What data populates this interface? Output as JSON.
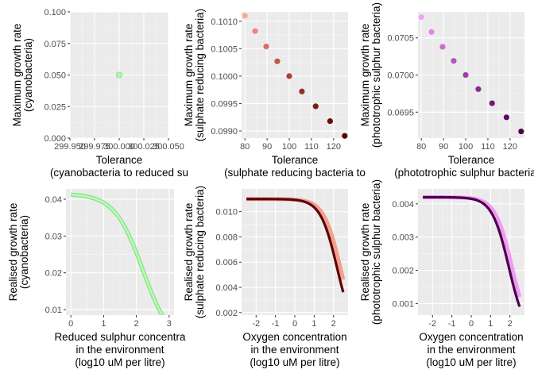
{
  "chart_data": [
    {
      "type": "scatter",
      "ylabel": [
        "Maximum growth rate",
        "(cyanobacteria)"
      ],
      "xlabel": [
        "Tolerance",
        "(cyanobacteria to reduced su"
      ],
      "xlim": [
        299.95,
        300.05
      ],
      "ylim": [
        0.0,
        0.1
      ],
      "xticks": [
        299.95,
        299.975,
        300.0,
        300.025,
        300.05
      ],
      "xtick_labels": [
        "299.950",
        "299.975",
        "300.000",
        "300.025",
        "300.050"
      ],
      "yticks": [
        0.0,
        0.025,
        0.05,
        0.075,
        0.1
      ],
      "ytick_labels": [
        "0.000",
        "0.025",
        "0.050",
        "0.075",
        "0.100"
      ],
      "grid": true,
      "points": [
        {
          "x": 300.0,
          "y": 0.05,
          "color": "#b4f5b4"
        }
      ]
    },
    {
      "type": "scatter",
      "ylabel": [
        "Maximum growth rate",
        "(sulphate reducing bacteria)"
      ],
      "xlabel": [
        "Tolerance",
        "(sulphate reducing bacteria to"
      ],
      "xlim": [
        78.5,
        126.5
      ],
      "ylim": [
        0.09887,
        0.10117
      ],
      "xticks": [
        80,
        90,
        100,
        110,
        120
      ],
      "xtick_labels": [
        "80",
        "90",
        "100",
        "110",
        "120"
      ],
      "yticks": [
        0.099,
        0.0995,
        0.1,
        0.1005,
        0.101
      ],
      "ytick_labels": [
        "0.0990",
        "0.0995",
        "0.1000",
        "0.1005",
        "0.1010"
      ],
      "grid": true,
      "points": [
        {
          "x": 80.0,
          "y": 0.1011,
          "color": "#f9aa98"
        },
        {
          "x": 84.6,
          "y": 0.10082,
          "color": "#ea8876"
        },
        {
          "x": 89.6,
          "y": 0.10054,
          "color": "#d86f5e"
        },
        {
          "x": 94.6,
          "y": 0.10027,
          "color": "#c45748"
        },
        {
          "x": 100.0,
          "y": 0.1,
          "color": "#ad4033"
        },
        {
          "x": 105.7,
          "y": 0.09972,
          "color": "#962d22"
        },
        {
          "x": 111.9,
          "y": 0.09945,
          "color": "#7e1a13"
        },
        {
          "x": 118.4,
          "y": 0.09918,
          "color": "#690d08"
        },
        {
          "x": 125.0,
          "y": 0.09891,
          "color": "#5a0202"
        }
      ]
    },
    {
      "type": "scatter",
      "ylabel": [
        "Maximum growth rate",
        "(phototrophic sulphur bacteria)"
      ],
      "xlabel": [
        "Tolerance",
        "(phototrophic sulphur bacteria to"
      ],
      "xlim": [
        78.5,
        126.5
      ],
      "ylim": [
        0.06915,
        0.07085
      ],
      "xticks": [
        80,
        90,
        100,
        110,
        120
      ],
      "xtick_labels": [
        "80",
        "90",
        "100",
        "110",
        "120"
      ],
      "yticks": [
        0.0695,
        0.07,
        0.0705
      ],
      "ytick_labels": [
        "0.0695",
        "0.0700",
        "0.0705"
      ],
      "grid": true,
      "points": [
        {
          "x": 80.0,
          "y": 0.07078,
          "color": "#f4a3f4"
        },
        {
          "x": 84.6,
          "y": 0.07058,
          "color": "#e086e4"
        },
        {
          "x": 89.6,
          "y": 0.07038,
          "color": "#cc6bd2"
        },
        {
          "x": 94.6,
          "y": 0.07019,
          "color": "#b853be"
        },
        {
          "x": 100.0,
          "y": 0.07,
          "color": "#a23ca8"
        },
        {
          "x": 105.7,
          "y": 0.06981,
          "color": "#8b2891"
        },
        {
          "x": 111.9,
          "y": 0.06962,
          "color": "#741779"
        },
        {
          "x": 118.4,
          "y": 0.06943,
          "color": "#5d0962"
        },
        {
          "x": 125.0,
          "y": 0.06924,
          "color": "#4c004f"
        }
      ]
    },
    {
      "type": "line",
      "ylabel": [
        "Realised growth rate",
        "(cyanobacteria)"
      ],
      "xlabel": [
        "Reduced sulphur concentra",
        "in the environment",
        "(log10 uM per litre)"
      ],
      "xlim": [
        -0.15,
        3.15
      ],
      "ylim": [
        0.0085,
        0.0428
      ],
      "xticks": [
        0,
        1,
        2,
        3
      ],
      "xtick_labels": [
        "0",
        "1",
        "2",
        "3"
      ],
      "yticks": [
        0.01,
        0.02,
        0.03,
        0.04
      ],
      "ytick_labels": [
        "0.01",
        "0.02",
        "0.03",
        "0.04"
      ],
      "grid": true,
      "curve": {
        "rmax": 0.0415,
        "half_sat": 2.2,
        "hill": 1.05,
        "x_range": [
          0,
          3
        ]
      },
      "series": [
        {
          "stroke": "#7ee27e",
          "width": 5.0,
          "offset": 0
        },
        {
          "stroke": "#a8f5a8",
          "width": 3.0,
          "offset": 0
        },
        {
          "stroke": "#c6fbc6",
          "width": 1.2,
          "offset": 0
        }
      ]
    },
    {
      "type": "line",
      "ylabel": [
        "Realised growth rate",
        "(sulphate reducing bacteria)"
      ],
      "xlabel": [
        "Oxygen concentration",
        "in the environment",
        "(log10 uM per litre)"
      ],
      "xlim": [
        -2.75,
        2.75
      ],
      "ylim": [
        0.0018,
        0.0118
      ],
      "xticks": [
        -2,
        -1,
        0,
        1,
        2
      ],
      "xtick_labels": [
        "-2",
        "-1",
        "0",
        "1",
        "2"
      ],
      "yticks": [
        0.002,
        0.004,
        0.006,
        0.008,
        0.01
      ],
      "ytick_labels": [
        "0.002",
        "0.004",
        "0.006",
        "0.008",
        "0.010"
      ],
      "grid": true,
      "curve": {
        "rmax": 0.011,
        "half_sat": 2.23,
        "hill": 1.05,
        "x_range": [
          -2.5,
          2.5
        ]
      },
      "series": [
        {
          "stroke": "#f4a090",
          "width": 5.0,
          "offset": -0.13
        },
        {
          "stroke": "#5c0606",
          "width": 3.2,
          "offset": 0.04
        }
      ]
    },
    {
      "type": "line",
      "ylabel": [
        "Realised growth rate",
        "(phototrophic sulphur bacteria)"
      ],
      "xlabel": [
        "Oxygen concentration",
        "in the environment",
        "(log10 uM per litre)"
      ],
      "xlim": [
        -2.75,
        2.75
      ],
      "ylim": [
        0.00065,
        0.00445
      ],
      "xticks": [
        -2,
        -1,
        0,
        1,
        2
      ],
      "xtick_labels": [
        "-2",
        "-1",
        "0",
        "1",
        "2"
      ],
      "yticks": [
        0.001,
        0.002,
        0.003,
        0.004
      ],
      "ytick_labels": [
        "0.001",
        "0.002",
        "0.003",
        "0.004"
      ],
      "grid": true,
      "curve": {
        "rmax": 0.0042,
        "half_sat": 1.98,
        "hill": 1.05,
        "x_range": [
          -2.5,
          2.5
        ]
      },
      "series": [
        {
          "stroke": "#ef9cf2",
          "width": 5.0,
          "offset": -0.12
        },
        {
          "stroke": "#4c004f",
          "width": 3.2,
          "offset": 0.04
        }
      ]
    }
  ]
}
